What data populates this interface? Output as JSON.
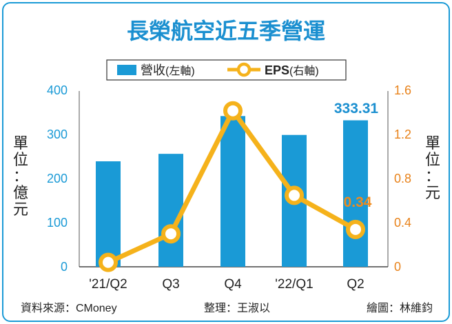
{
  "chart_data": {
    "type": "bar+line",
    "title": "長榮航空近五季營運",
    "categories": [
      "'21/Q2",
      "Q3",
      "Q4",
      "'22/Q1",
      "Q2"
    ],
    "series": [
      {
        "name": "營收(左軸)",
        "type": "bar",
        "axis": "left",
        "values": [
          240,
          257,
          343,
          300,
          333.31
        ],
        "color": "#1a9ad6"
      },
      {
        "name": "EPS(右軸)",
        "type": "line",
        "axis": "right",
        "values": [
          0.04,
          0.3,
          1.42,
          0.65,
          0.34
        ],
        "color": "#f5b21b"
      }
    ],
    "left_axis": {
      "label": "單位：億元",
      "label_chars": [
        "單",
        "位",
        "：",
        "億",
        "元"
      ],
      "range": [
        0,
        400
      ],
      "ticks": [
        "400",
        "300",
        "200",
        "100",
        "0"
      ],
      "color": "#1a9ad6"
    },
    "right_axis": {
      "label": "單位：元",
      "label_chars": [
        "單",
        "位",
        "：",
        "元"
      ],
      "range": [
        0,
        1.6
      ],
      "ticks": [
        "1.6",
        "1.2",
        "0.8",
        "0.4",
        "0"
      ],
      "color": "#e8821a"
    },
    "annotations": {
      "bar_last": "333.31",
      "eps_last": "0.34"
    },
    "legend": {
      "bar_label": "營收",
      "bar_suffix": "(左軸)",
      "line_label": "EPS",
      "line_suffix": "(右軸)"
    }
  },
  "footer": {
    "source": "資料來源：CMoney",
    "editor": "整理：王淑以",
    "illustrator": "繪圖：林維鈞"
  },
  "colors": {
    "title": "#1a8fd0",
    "border": "#1a9ad6",
    "annotation_bar": "#1a8fd0",
    "annotation_line": "#f08a1c",
    "text": "#222222"
  }
}
